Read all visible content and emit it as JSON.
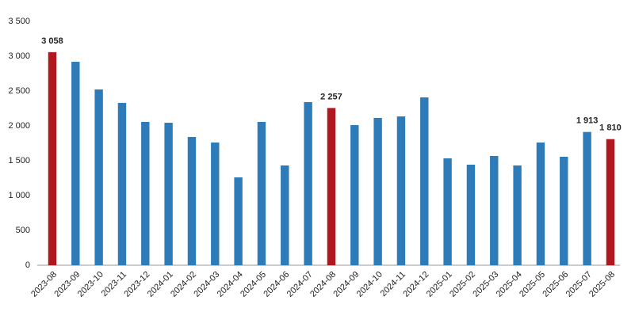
{
  "chart_data": {
    "type": "bar",
    "categories": [
      "2023-08",
      "2023-09",
      "2023-10",
      "2023-11",
      "2023-12",
      "2024-01",
      "2024-02",
      "2024-03",
      "2024-04",
      "2024-05",
      "2024-06",
      "2024-07",
      "2024-08",
      "2024-09",
      "2024-10",
      "2024-11",
      "2024-12",
      "2025-01",
      "2025-02",
      "2025-03",
      "2025-04",
      "2025-05",
      "2025-06",
      "2025-07",
      "2025-08"
    ],
    "values": [
      3058,
      2920,
      2523,
      2330,
      2057,
      2045,
      1841,
      1761,
      1261,
      2057,
      1432,
      2341,
      2257,
      2011,
      2114,
      2136,
      2409,
      1534,
      1443,
      1568,
      1432,
      1761,
      1557,
      1913,
      1810
    ],
    "value_labels": [
      "3 058",
      null,
      null,
      null,
      null,
      null,
      null,
      null,
      null,
      null,
      null,
      null,
      "2 257",
      null,
      null,
      null,
      null,
      null,
      null,
      null,
      null,
      null,
      null,
      "1 913",
      "1 810"
    ],
    "colors": [
      "#b0171f",
      "#2e7bb9",
      "#2e7bb9",
      "#2e7bb9",
      "#2e7bb9",
      "#2e7bb9",
      "#2e7bb9",
      "#2e7bb9",
      "#2e7bb9",
      "#2e7bb9",
      "#2e7bb9",
      "#2e7bb9",
      "#b0171f",
      "#2e7bb9",
      "#2e7bb9",
      "#2e7bb9",
      "#2e7bb9",
      "#2e7bb9",
      "#2e7bb9",
      "#2e7bb9",
      "#2e7bb9",
      "#2e7bb9",
      "#2e7bb9",
      "#2e7bb9",
      "#b0171f"
    ],
    "ylim": [
      0,
      3500
    ],
    "yticks": [
      0,
      500,
      {
        "value": 1000,
        "label": "1 000"
      },
      {
        "value": 1500,
        "label": "1 500"
      },
      {
        "value": 2000,
        "label": "2 000"
      },
      {
        "value": 2500,
        "label": "2 500"
      },
      {
        "value": 3000,
        "label": "3 000"
      },
      {
        "value": 3500,
        "label": "3 500"
      }
    ],
    "grid": false
  }
}
